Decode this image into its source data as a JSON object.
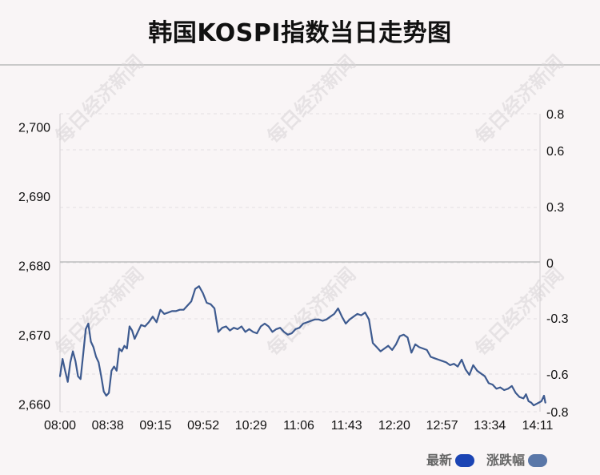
{
  "title": "韩国KOSPI指数当日走势图",
  "chart_data": {
    "type": "line",
    "title": "韩国KOSPI指数当日走势图",
    "x_ticks": [
      "08:00",
      "08:38",
      "09:15",
      "09:52",
      "10:29",
      "11:06",
      "11:43",
      "12:20",
      "12:57",
      "13:34",
      "14:11"
    ],
    "y_left_ticks": [
      2660,
      2670,
      2680,
      2690,
      2700
    ],
    "y_left_tick_labels": [
      "2,660",
      "2,670",
      "2,680",
      "2,690",
      "2,700"
    ],
    "y_left_range": [
      2659.0,
      2702.0
    ],
    "y_right_ticks": [
      0.8,
      0.6,
      0.3,
      0,
      -0.3,
      -0.6,
      -0.8
    ],
    "y_right_tick_labels": [
      "0.8",
      "0.6",
      "0.3",
      "0",
      "-0.3",
      "-0.6",
      "-0.8"
    ],
    "baseline_value": 2680.5,
    "legend": [
      {
        "label": "最新",
        "color": "#1b44b4"
      },
      {
        "label": "涨跌幅",
        "color": "#5a77a8"
      }
    ],
    "watermark_text": "每日经济新闻",
    "series": [
      {
        "name": "最新",
        "color": "#3d5a8f",
        "points": [
          [
            "08:00",
            2664.0
          ],
          [
            "08:02",
            2666.5
          ],
          [
            "08:04",
            2664.8
          ],
          [
            "08:06",
            2663.2
          ],
          [
            "08:08",
            2666.0
          ],
          [
            "08:10",
            2667.6
          ],
          [
            "08:12",
            2666.2
          ],
          [
            "08:14",
            2664.0
          ],
          [
            "08:16",
            2663.6
          ],
          [
            "08:18",
            2667.2
          ],
          [
            "08:20",
            2670.8
          ],
          [
            "08:22",
            2671.6
          ],
          [
            "08:24",
            2669.0
          ],
          [
            "08:26",
            2668.2
          ],
          [
            "08:28",
            2666.8
          ],
          [
            "08:30",
            2666.0
          ],
          [
            "08:32",
            2664.0
          ],
          [
            "08:34",
            2661.8
          ],
          [
            "08:36",
            2661.2
          ],
          [
            "08:38",
            2661.6
          ],
          [
            "08:40",
            2664.8
          ],
          [
            "08:42",
            2665.4
          ],
          [
            "08:44",
            2664.8
          ],
          [
            "08:46",
            2668.0
          ],
          [
            "08:48",
            2667.6
          ],
          [
            "08:50",
            2668.4
          ],
          [
            "08:52",
            2668.0
          ],
          [
            "08:54",
            2671.2
          ],
          [
            "08:56",
            2670.6
          ],
          [
            "08:58",
            2669.4
          ],
          [
            "09:00",
            2670.2
          ],
          [
            "09:03",
            2671.4
          ],
          [
            "09:06",
            2671.2
          ],
          [
            "09:09",
            2671.8
          ],
          [
            "09:12",
            2672.6
          ],
          [
            "09:15",
            2671.8
          ],
          [
            "09:18",
            2673.6
          ],
          [
            "09:21",
            2673.0
          ],
          [
            "09:24",
            2673.2
          ],
          [
            "09:27",
            2673.4
          ],
          [
            "09:30",
            2673.4
          ],
          [
            "09:33",
            2673.6
          ],
          [
            "09:36",
            2673.6
          ],
          [
            "09:39",
            2674.2
          ],
          [
            "09:42",
            2674.8
          ],
          [
            "09:45",
            2676.6
          ],
          [
            "09:48",
            2677.0
          ],
          [
            "09:51",
            2676.0
          ],
          [
            "09:54",
            2674.6
          ],
          [
            "09:57",
            2674.4
          ],
          [
            "10:00",
            2673.8
          ],
          [
            "10:03",
            2670.4
          ],
          [
            "10:06",
            2671.0
          ],
          [
            "10:09",
            2671.2
          ],
          [
            "10:12",
            2670.6
          ],
          [
            "10:15",
            2671.0
          ],
          [
            "10:18",
            2670.8
          ],
          [
            "10:21",
            2671.2
          ],
          [
            "10:24",
            2670.4
          ],
          [
            "10:27",
            2670.8
          ],
          [
            "10:30",
            2670.4
          ],
          [
            "10:33",
            2670.2
          ],
          [
            "10:36",
            2671.2
          ],
          [
            "10:39",
            2671.6
          ],
          [
            "10:42",
            2671.2
          ],
          [
            "10:45",
            2670.4
          ],
          [
            "10:48",
            2670.8
          ],
          [
            "10:51",
            2671.0
          ],
          [
            "10:54",
            2670.4
          ],
          [
            "10:57",
            2670.0
          ],
          [
            "11:00",
            2670.2
          ],
          [
            "11:03",
            2670.8
          ],
          [
            "11:06",
            2671.0
          ],
          [
            "11:09",
            2671.6
          ],
          [
            "11:12",
            2671.8
          ],
          [
            "11:15",
            2672.0
          ],
          [
            "11:18",
            2672.2
          ],
          [
            "11:21",
            2672.2
          ],
          [
            "11:24",
            2672.0
          ],
          [
            "11:27",
            2672.2
          ],
          [
            "11:30",
            2672.6
          ],
          [
            "11:33",
            2673.0
          ],
          [
            "11:36",
            2673.8
          ],
          [
            "11:39",
            2672.6
          ],
          [
            "11:42",
            2671.6
          ],
          [
            "11:45",
            2672.2
          ],
          [
            "11:48",
            2672.6
          ],
          [
            "11:51",
            2673.0
          ],
          [
            "11:54",
            2672.8
          ],
          [
            "11:57",
            2673.2
          ],
          [
            "12:00",
            2672.2
          ],
          [
            "12:03",
            2668.8
          ],
          [
            "12:06",
            2668.2
          ],
          [
            "12:09",
            2667.6
          ],
          [
            "12:12",
            2668.0
          ],
          [
            "12:15",
            2668.4
          ],
          [
            "12:18",
            2667.8
          ],
          [
            "12:21",
            2668.6
          ],
          [
            "12:24",
            2669.8
          ],
          [
            "12:27",
            2670.0
          ],
          [
            "12:30",
            2669.6
          ],
          [
            "12:33",
            2667.4
          ],
          [
            "12:36",
            2668.6
          ],
          [
            "12:39",
            2668.2
          ],
          [
            "12:42",
            2668.0
          ],
          [
            "12:45",
            2667.8
          ],
          [
            "12:48",
            2666.8
          ],
          [
            "12:51",
            2666.6
          ],
          [
            "12:54",
            2666.4
          ],
          [
            "12:57",
            2666.2
          ],
          [
            "13:00",
            2666.0
          ],
          [
            "13:03",
            2665.6
          ],
          [
            "13:06",
            2665.8
          ],
          [
            "13:09",
            2665.4
          ],
          [
            "13:12",
            2666.4
          ],
          [
            "13:15",
            2665.0
          ],
          [
            "13:18",
            2664.2
          ],
          [
            "13:21",
            2665.6
          ],
          [
            "13:24",
            2664.8
          ],
          [
            "13:27",
            2664.4
          ],
          [
            "13:30",
            2664.0
          ],
          [
            "13:33",
            2663.0
          ],
          [
            "13:36",
            2662.8
          ],
          [
            "13:39",
            2662.2
          ],
          [
            "13:42",
            2662.4
          ],
          [
            "13:45",
            2662.0
          ],
          [
            "13:48",
            2662.2
          ],
          [
            "13:51",
            2662.6
          ],
          [
            "13:54",
            2661.6
          ],
          [
            "13:57",
            2661.0
          ],
          [
            "14:00",
            2660.8
          ],
          [
            "14:02",
            2661.4
          ],
          [
            "14:04",
            2660.4
          ],
          [
            "14:06",
            2660.2
          ],
          [
            "14:08",
            2659.8
          ],
          [
            "14:10",
            2660.0
          ],
          [
            "14:12",
            2660.2
          ],
          [
            "14:14",
            2660.4
          ],
          [
            "14:16",
            2661.2
          ],
          [
            "14:17",
            2660.2
          ]
        ]
      }
    ]
  }
}
